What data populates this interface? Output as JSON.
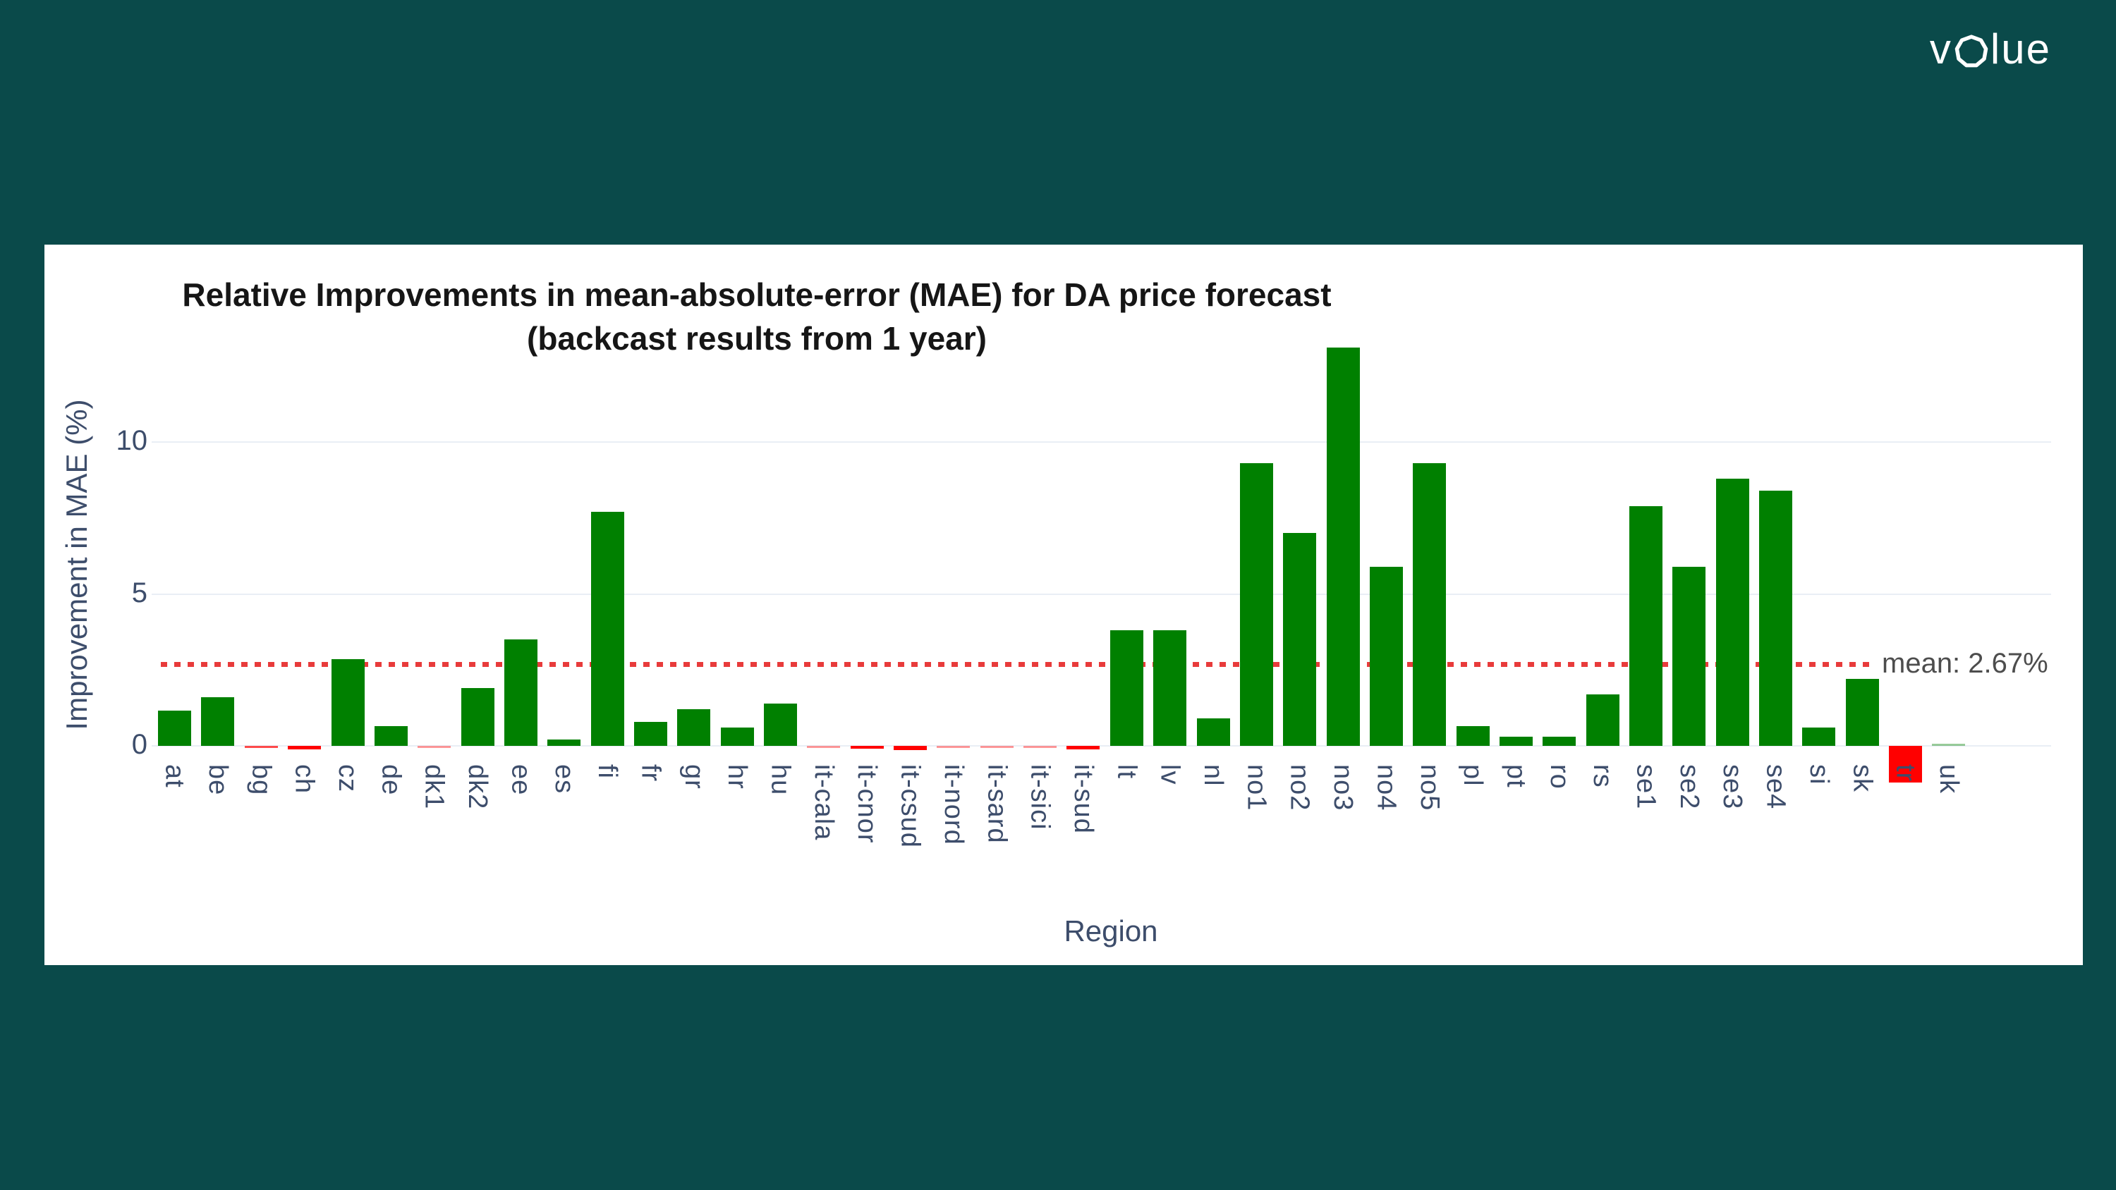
{
  "logo": {
    "name": "volue",
    "text_v": "v",
    "text_lue": "lue"
  },
  "chart": {
    "title_line1": "Relative Improvements in mean-absolute-error (MAE) for DA price forecast",
    "title_line2": "(backcast results from 1 year)",
    "y_axis_title": "Improvement in MAE (%)",
    "x_axis_title": "Region",
    "mean_label": "mean: 2.67%"
  },
  "chart_data": {
    "type": "bar",
    "title": "Relative Improvements in mean-absolute-error (MAE) for DA price forecast (backcast results from 1 year)",
    "xlabel": "Region",
    "ylabel": "Improvement in MAE (%)",
    "categories": [
      "at",
      "be",
      "bg",
      "ch",
      "cz",
      "de",
      "dk1",
      "dk2",
      "ee",
      "es",
      "fi",
      "fr",
      "gr",
      "hr",
      "hu",
      "it-cala",
      "it-cnor",
      "it-csud",
      "it-nord",
      "it-sard",
      "it-sici",
      "it-sud",
      "lt",
      "lv",
      "nl",
      "no1",
      "no2",
      "no3",
      "no4",
      "no5",
      "pl",
      "pt",
      "ro",
      "rs",
      "se1",
      "se2",
      "se3",
      "se4",
      "si",
      "sk",
      "tr",
      "uk"
    ],
    "values": [
      1.15,
      1.6,
      -0.07,
      -0.12,
      2.85,
      0.65,
      -0.02,
      1.9,
      3.5,
      0.2,
      7.7,
      0.8,
      1.2,
      0.6,
      1.4,
      -0.04,
      -0.1,
      -0.15,
      -0.02,
      -0.04,
      -0.04,
      -0.12,
      3.8,
      3.8,
      0.9,
      9.3,
      7.0,
      13.1,
      5.9,
      9.3,
      0.65,
      0.3,
      0.3,
      1.7,
      7.9,
      5.9,
      8.8,
      8.4,
      0.6,
      2.2,
      -1.2,
      0.02
    ],
    "mean": 2.67,
    "mean_annotation": "mean: 2.67%",
    "y_ticks": [
      0,
      5,
      10
    ],
    "ylim": [
      -1.6,
      13.5
    ],
    "grid": true,
    "legend": "none",
    "positive_color": "#008000",
    "negative_color": "#ff0000",
    "mean_line_color": "#e83b3b",
    "gridline_color": "#e9eef5",
    "axis_label_color": "#3d4d6b",
    "background_color": "#0a4a4a",
    "panel_color": "#ffffff"
  }
}
